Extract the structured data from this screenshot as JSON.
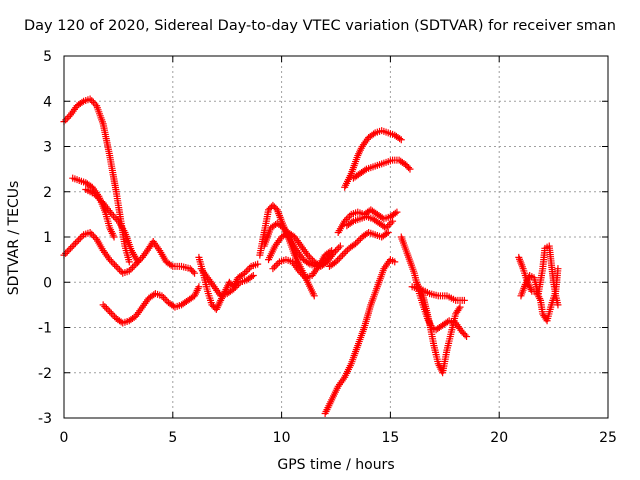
{
  "chart_data": {
    "type": "scatter",
    "title": "Day 120 of 2020, Sidereal Day-to-day VTEC variation (SDTVAR) for receiver sman",
    "xlabel": "GPS time / hours",
    "ylabel": "SDTVAR / TECUs",
    "xlim": [
      0,
      25
    ],
    "ylim": [
      -3,
      5
    ],
    "xticks": [
      0,
      5,
      10,
      15,
      20,
      25
    ],
    "yticks": [
      -3,
      -2,
      -1,
      0,
      1,
      2,
      3,
      4,
      5
    ],
    "grid": true,
    "marker": "+",
    "color": "#ff0000",
    "series": [
      {
        "points": [
          [
            0,
            3.55
          ],
          [
            0.3,
            3.7
          ],
          [
            0.6,
            3.9
          ],
          [
            0.9,
            4.0
          ],
          [
            1.2,
            4.05
          ],
          [
            1.5,
            3.9
          ],
          [
            1.8,
            3.5
          ],
          [
            2.1,
            2.8
          ],
          [
            2.4,
            2.0
          ],
          [
            2.6,
            1.4
          ],
          [
            2.8,
            0.8
          ],
          [
            3.0,
            0.45
          ]
        ]
      },
      {
        "points": [
          [
            0.4,
            2.3
          ],
          [
            0.7,
            2.25
          ],
          [
            1.0,
            2.2
          ],
          [
            1.3,
            2.1
          ],
          [
            1.6,
            1.9
          ],
          [
            1.9,
            1.55
          ],
          [
            2.1,
            1.2
          ],
          [
            2.3,
            1.0
          ]
        ]
      },
      {
        "points": [
          [
            1.0,
            2.05
          ],
          [
            1.4,
            1.95
          ],
          [
            1.8,
            1.75
          ],
          [
            2.2,
            1.5
          ],
          [
            2.5,
            1.35
          ],
          [
            2.8,
            1.1
          ],
          [
            3.1,
            0.7
          ],
          [
            3.4,
            0.45
          ]
        ]
      },
      {
        "points": [
          [
            0,
            0.6
          ],
          [
            0.3,
            0.75
          ],
          [
            0.6,
            0.9
          ],
          [
            0.9,
            1.05
          ],
          [
            1.2,
            1.1
          ],
          [
            1.5,
            0.95
          ],
          [
            1.8,
            0.7
          ],
          [
            2.1,
            0.5
          ],
          [
            2.4,
            0.35
          ],
          [
            2.7,
            0.2
          ],
          [
            3.0,
            0.25
          ],
          [
            3.3,
            0.4
          ],
          [
            3.6,
            0.55
          ],
          [
            3.9,
            0.75
          ],
          [
            4.1,
            0.9
          ],
          [
            4.4,
            0.7
          ],
          [
            4.7,
            0.45
          ],
          [
            5.0,
            0.35
          ],
          [
            5.4,
            0.35
          ],
          [
            5.8,
            0.3
          ],
          [
            6.0,
            0.2
          ]
        ]
      },
      {
        "points": [
          [
            1.8,
            -0.5
          ],
          [
            2.1,
            -0.65
          ],
          [
            2.4,
            -0.8
          ],
          [
            2.7,
            -0.9
          ],
          [
            3.0,
            -0.85
          ],
          [
            3.3,
            -0.75
          ],
          [
            3.6,
            -0.55
          ],
          [
            3.9,
            -0.35
          ],
          [
            4.2,
            -0.25
          ],
          [
            4.5,
            -0.3
          ],
          [
            4.8,
            -0.45
          ],
          [
            5.1,
            -0.55
          ],
          [
            5.4,
            -0.5
          ],
          [
            5.7,
            -0.4
          ],
          [
            6.0,
            -0.3
          ],
          [
            6.2,
            -0.1
          ]
        ]
      },
      {
        "points": [
          [
            6.2,
            0.55
          ],
          [
            6.4,
            0.2
          ],
          [
            6.6,
            -0.2
          ],
          [
            6.8,
            -0.5
          ],
          [
            7.0,
            -0.6
          ],
          [
            7.2,
            -0.4
          ],
          [
            7.4,
            -0.2
          ],
          [
            7.6,
            0.0
          ],
          [
            7.8,
            -0.1
          ],
          [
            8.0,
            0.1
          ],
          [
            8.3,
            0.2
          ],
          [
            8.6,
            0.35
          ],
          [
            8.9,
            0.4
          ]
        ]
      },
      {
        "points": [
          [
            6.3,
            0.3
          ],
          [
            6.6,
            0.1
          ],
          [
            6.9,
            -0.1
          ],
          [
            7.2,
            -0.3
          ],
          [
            7.5,
            -0.25
          ],
          [
            7.8,
            -0.15
          ],
          [
            8.1,
            0.0
          ],
          [
            8.4,
            0.05
          ],
          [
            8.7,
            0.15
          ]
        ]
      },
      {
        "points": [
          [
            9.0,
            0.6
          ],
          [
            9.2,
            1.1
          ],
          [
            9.4,
            1.6
          ],
          [
            9.6,
            1.7
          ],
          [
            9.8,
            1.6
          ],
          [
            10.0,
            1.35
          ],
          [
            10.3,
            1.0
          ],
          [
            10.6,
            0.6
          ],
          [
            10.9,
            0.3
          ],
          [
            11.2,
            0.0
          ],
          [
            11.5,
            -0.3
          ]
        ]
      },
      {
        "points": [
          [
            9.2,
            0.8
          ],
          [
            9.5,
            1.2
          ],
          [
            9.8,
            1.3
          ],
          [
            10.1,
            1.2
          ],
          [
            10.4,
            0.95
          ],
          [
            10.7,
            0.7
          ],
          [
            11.0,
            0.5
          ],
          [
            11.3,
            0.4
          ],
          [
            11.6,
            0.35
          ],
          [
            11.9,
            0.4
          ],
          [
            12.2,
            0.6
          ]
        ]
      },
      {
        "points": [
          [
            9.4,
            0.5
          ],
          [
            9.7,
            0.8
          ],
          [
            10.0,
            1.0
          ],
          [
            10.3,
            1.1
          ],
          [
            10.6,
            1.0
          ],
          [
            10.9,
            0.8
          ],
          [
            11.2,
            0.6
          ],
          [
            11.5,
            0.45
          ],
          [
            11.8,
            0.35
          ],
          [
            12.1,
            0.45
          ],
          [
            12.4,
            0.65
          ],
          [
            12.7,
            0.8
          ]
        ]
      },
      {
        "points": [
          [
            9.6,
            0.3
          ],
          [
            9.9,
            0.45
          ],
          [
            10.2,
            0.5
          ],
          [
            10.5,
            0.45
          ],
          [
            10.8,
            0.25
          ],
          [
            11.1,
            0.1
          ],
          [
            11.4,
            0.15
          ],
          [
            11.7,
            0.35
          ],
          [
            12.0,
            0.6
          ],
          [
            12.3,
            0.7
          ]
        ]
      },
      {
        "points": [
          [
            12.0,
            -2.9
          ],
          [
            12.3,
            -2.6
          ],
          [
            12.6,
            -2.3
          ],
          [
            12.9,
            -2.1
          ],
          [
            13.2,
            -1.8
          ],
          [
            13.5,
            -1.4
          ],
          [
            13.8,
            -1.0
          ],
          [
            14.1,
            -0.5
          ],
          [
            14.4,
            -0.1
          ],
          [
            14.7,
            0.3
          ],
          [
            15.0,
            0.5
          ],
          [
            15.2,
            0.45
          ]
        ]
      },
      {
        "points": [
          [
            12.2,
            0.35
          ],
          [
            12.5,
            0.45
          ],
          [
            12.8,
            0.6
          ],
          [
            13.1,
            0.75
          ],
          [
            13.4,
            0.85
          ],
          [
            13.7,
            1.0
          ],
          [
            14.0,
            1.1
          ],
          [
            14.3,
            1.05
          ],
          [
            14.6,
            1.0
          ],
          [
            14.9,
            1.1
          ]
        ]
      },
      {
        "points": [
          [
            12.6,
            1.1
          ],
          [
            12.9,
            1.35
          ],
          [
            13.2,
            1.5
          ],
          [
            13.5,
            1.55
          ],
          [
            13.8,
            1.5
          ],
          [
            14.1,
            1.6
          ],
          [
            14.4,
            1.5
          ],
          [
            14.7,
            1.4
          ],
          [
            15.0,
            1.45
          ],
          [
            15.3,
            1.55
          ]
        ]
      },
      {
        "points": [
          [
            12.9,
            2.1
          ],
          [
            13.2,
            2.4
          ],
          [
            13.5,
            2.8
          ],
          [
            13.7,
            3.0
          ],
          [
            14.0,
            3.2
          ],
          [
            14.3,
            3.3
          ],
          [
            14.6,
            3.35
          ],
          [
            14.9,
            3.3
          ],
          [
            15.2,
            3.25
          ],
          [
            15.5,
            3.15
          ]
        ]
      },
      {
        "points": [
          [
            13.3,
            2.3
          ],
          [
            13.6,
            2.4
          ],
          [
            13.9,
            2.5
          ],
          [
            14.2,
            2.55
          ],
          [
            14.5,
            2.6
          ],
          [
            14.8,
            2.65
          ],
          [
            15.1,
            2.7
          ],
          [
            15.4,
            2.7
          ],
          [
            15.7,
            2.6
          ],
          [
            15.9,
            2.5
          ]
        ]
      },
      {
        "points": [
          [
            13.0,
            1.25
          ],
          [
            13.3,
            1.35
          ],
          [
            13.6,
            1.4
          ],
          [
            13.9,
            1.45
          ],
          [
            14.2,
            1.4
          ],
          [
            14.5,
            1.3
          ],
          [
            14.8,
            1.2
          ],
          [
            15.1,
            1.35
          ]
        ]
      },
      {
        "points": [
          [
            15.5,
            1.0
          ],
          [
            15.8,
            0.6
          ],
          [
            16.1,
            0.2
          ],
          [
            16.3,
            -0.2
          ],
          [
            16.5,
            -0.5
          ],
          [
            16.7,
            -0.8
          ],
          [
            16.9,
            -1.0
          ],
          [
            17.1,
            -1.05
          ],
          [
            17.4,
            -0.95
          ],
          [
            17.7,
            -0.85
          ],
          [
            18.0,
            -0.9
          ],
          [
            18.3,
            -1.1
          ],
          [
            18.5,
            -1.2
          ]
        ]
      },
      {
        "points": [
          [
            16.2,
            0.0
          ],
          [
            16.5,
            -0.3
          ],
          [
            16.8,
            -0.9
          ],
          [
            17.0,
            -1.4
          ],
          [
            17.2,
            -1.8
          ],
          [
            17.4,
            -2.0
          ],
          [
            17.6,
            -1.5
          ],
          [
            17.8,
            -1.1
          ],
          [
            18.0,
            -0.7
          ],
          [
            18.2,
            -0.55
          ]
        ]
      },
      {
        "points": [
          [
            16.0,
            -0.1
          ],
          [
            16.4,
            -0.15
          ],
          [
            16.8,
            -0.25
          ],
          [
            17.2,
            -0.3
          ],
          [
            17.6,
            -0.3
          ],
          [
            18.0,
            -0.4
          ],
          [
            18.4,
            -0.4
          ]
        ]
      },
      {
        "points": [
          [
            20.9,
            0.55
          ],
          [
            21.1,
            0.3
          ],
          [
            21.3,
            0.0
          ],
          [
            21.5,
            -0.2
          ],
          [
            21.7,
            -0.2
          ],
          [
            21.9,
            -0.4
          ],
          [
            22.0,
            -0.7
          ],
          [
            22.2,
            -0.85
          ],
          [
            22.4,
            -0.5
          ],
          [
            22.6,
            -0.2
          ],
          [
            22.7,
            0.3
          ]
        ]
      },
      {
        "points": [
          [
            21.0,
            -0.3
          ],
          [
            21.2,
            -0.05
          ],
          [
            21.4,
            0.15
          ],
          [
            21.6,
            0.1
          ],
          [
            21.8,
            -0.25
          ],
          [
            22.0,
            0.3
          ],
          [
            22.1,
            0.75
          ],
          [
            22.3,
            0.8
          ],
          [
            22.5,
            0.0
          ],
          [
            22.6,
            -0.3
          ],
          [
            22.7,
            -0.5
          ]
        ]
      }
    ]
  }
}
